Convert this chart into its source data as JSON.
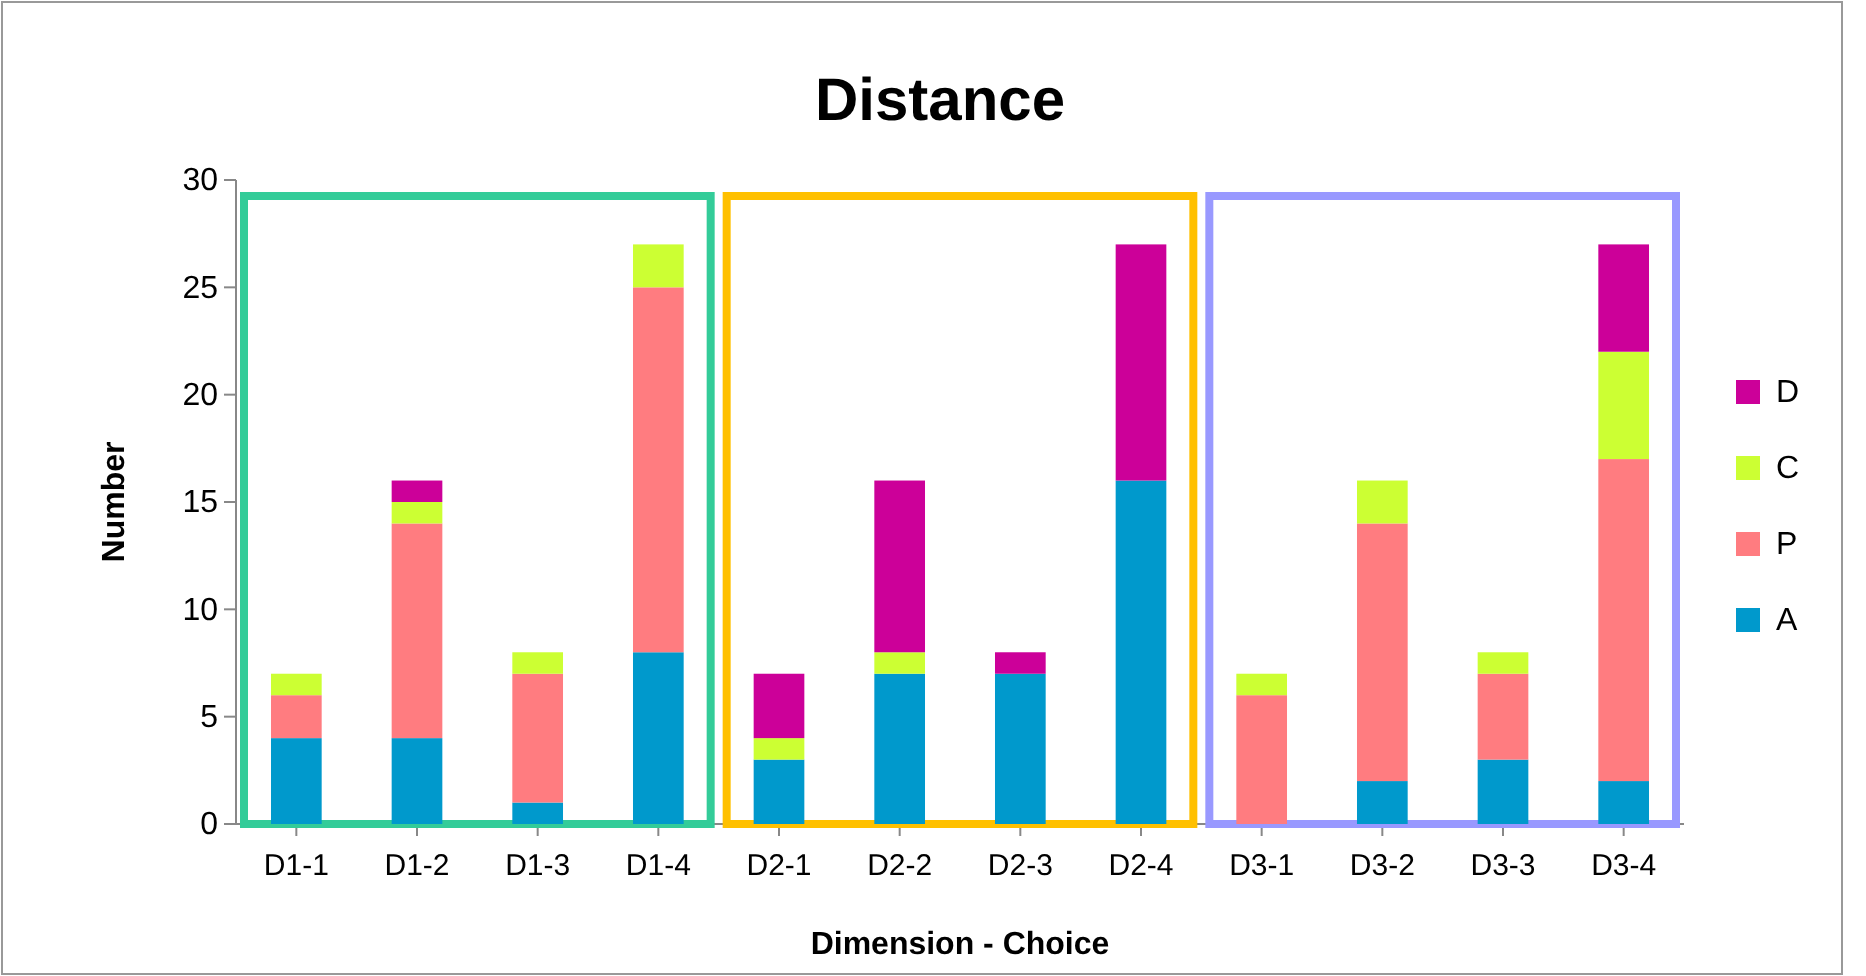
{
  "chart_data": {
    "type": "bar",
    "title": "Distance",
    "xlabel": "Dimension - Choice",
    "ylabel": "Number",
    "categories": [
      "D1-1",
      "D1-2",
      "D1-3",
      "D1-4",
      "D2-1",
      "D2-2",
      "D2-3",
      "D2-4",
      "D3-1",
      "D3-2",
      "D3-3",
      "D3-4"
    ],
    "stacked": true,
    "ylim": [
      0,
      30
    ],
    "yticks": [
      0,
      5,
      10,
      15,
      20,
      25,
      30
    ],
    "grid": false,
    "legend": "right",
    "series": [
      {
        "name": "A",
        "color": "#0099cc",
        "values": [
          4,
          4,
          1,
          8,
          3,
          7,
          7,
          16,
          0,
          2,
          3,
          2
        ]
      },
      {
        "name": "P",
        "color": "#ff7c80",
        "values": [
          2,
          10,
          6,
          17,
          0,
          0,
          0,
          0,
          6,
          12,
          4,
          15
        ]
      },
      {
        "name": "C",
        "color": "#ccff33",
        "values": [
          1,
          1,
          1,
          2,
          1,
          1,
          0,
          0,
          1,
          2,
          1,
          5
        ]
      },
      {
        "name": "D",
        "color": "#cc0099",
        "values": [
          0,
          1,
          0,
          0,
          3,
          8,
          1,
          11,
          0,
          0,
          0,
          5
        ]
      }
    ]
  }
}
